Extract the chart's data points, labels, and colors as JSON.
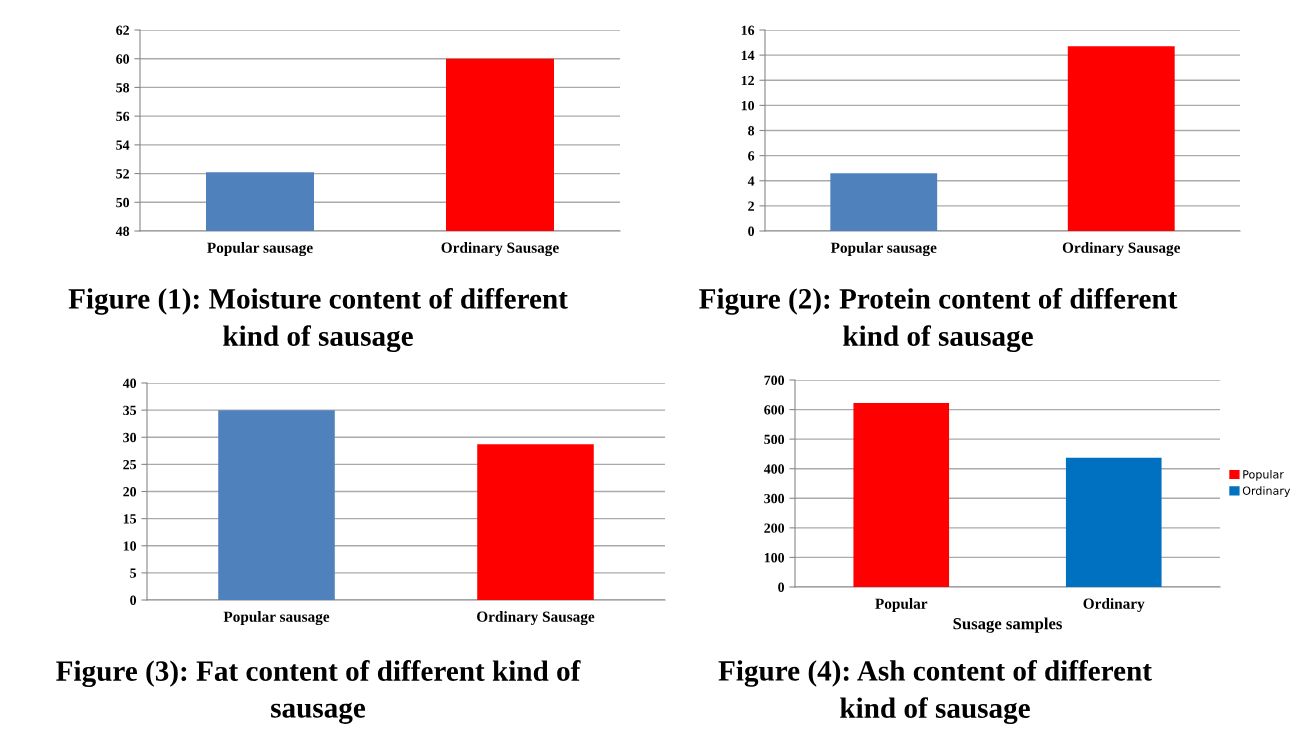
{
  "chart_data": [
    {
      "type": "bar",
      "title": "Figure (1): Moisture content of different\nkind of sausage",
      "categories": [
        "Popular sausage",
        "Ordinary Sausage"
      ],
      "values": [
        52.1,
        60
      ],
      "colors": [
        "#4f81bd",
        "#ff0000"
      ],
      "ylim": [
        48,
        62
      ],
      "yticks": [
        48,
        50,
        52,
        54,
        56,
        58,
        60,
        62
      ],
      "grid": "y"
    },
    {
      "type": "bar",
      "title": "Figure (2): Protein content of different\nkind of sausage",
      "categories": [
        "Popular sausage",
        "Ordinary Sausage"
      ],
      "values": [
        4.6,
        14.7
      ],
      "colors": [
        "#4f81bd",
        "#ff0000"
      ],
      "ylim": [
        0,
        16
      ],
      "yticks": [
        0,
        2,
        4,
        6,
        8,
        10,
        12,
        14,
        16
      ],
      "grid": "y"
    },
    {
      "type": "bar",
      "title": "Figure (3): Fat content of different kind of\nsausage",
      "categories": [
        "Popular sausage",
        "Ordinary Sausage"
      ],
      "values": [
        35,
        28.7
      ],
      "colors": [
        "#4f81bd",
        "#ff0000"
      ],
      "ylim": [
        0,
        40
      ],
      "yticks": [
        0,
        5,
        10,
        15,
        20,
        25,
        30,
        35,
        40
      ],
      "grid": "y"
    },
    {
      "type": "bar",
      "title": "Figure (4): Ash content of different\nkind of sausage",
      "xlabel": "Susage samples",
      "categories": [
        "Popular",
        "Ordinary"
      ],
      "series": [
        {
          "name": "Popular",
          "color": "#ff0000",
          "values": [
            622,
            null
          ]
        },
        {
          "name": "Ordinary",
          "color": "#0070c0",
          "values": [
            null,
            437
          ]
        }
      ],
      "ylim": [
        0,
        700
      ],
      "yticks": [
        0,
        100,
        200,
        300,
        400,
        500,
        600,
        700
      ],
      "grid": "y",
      "legend": "right"
    }
  ]
}
